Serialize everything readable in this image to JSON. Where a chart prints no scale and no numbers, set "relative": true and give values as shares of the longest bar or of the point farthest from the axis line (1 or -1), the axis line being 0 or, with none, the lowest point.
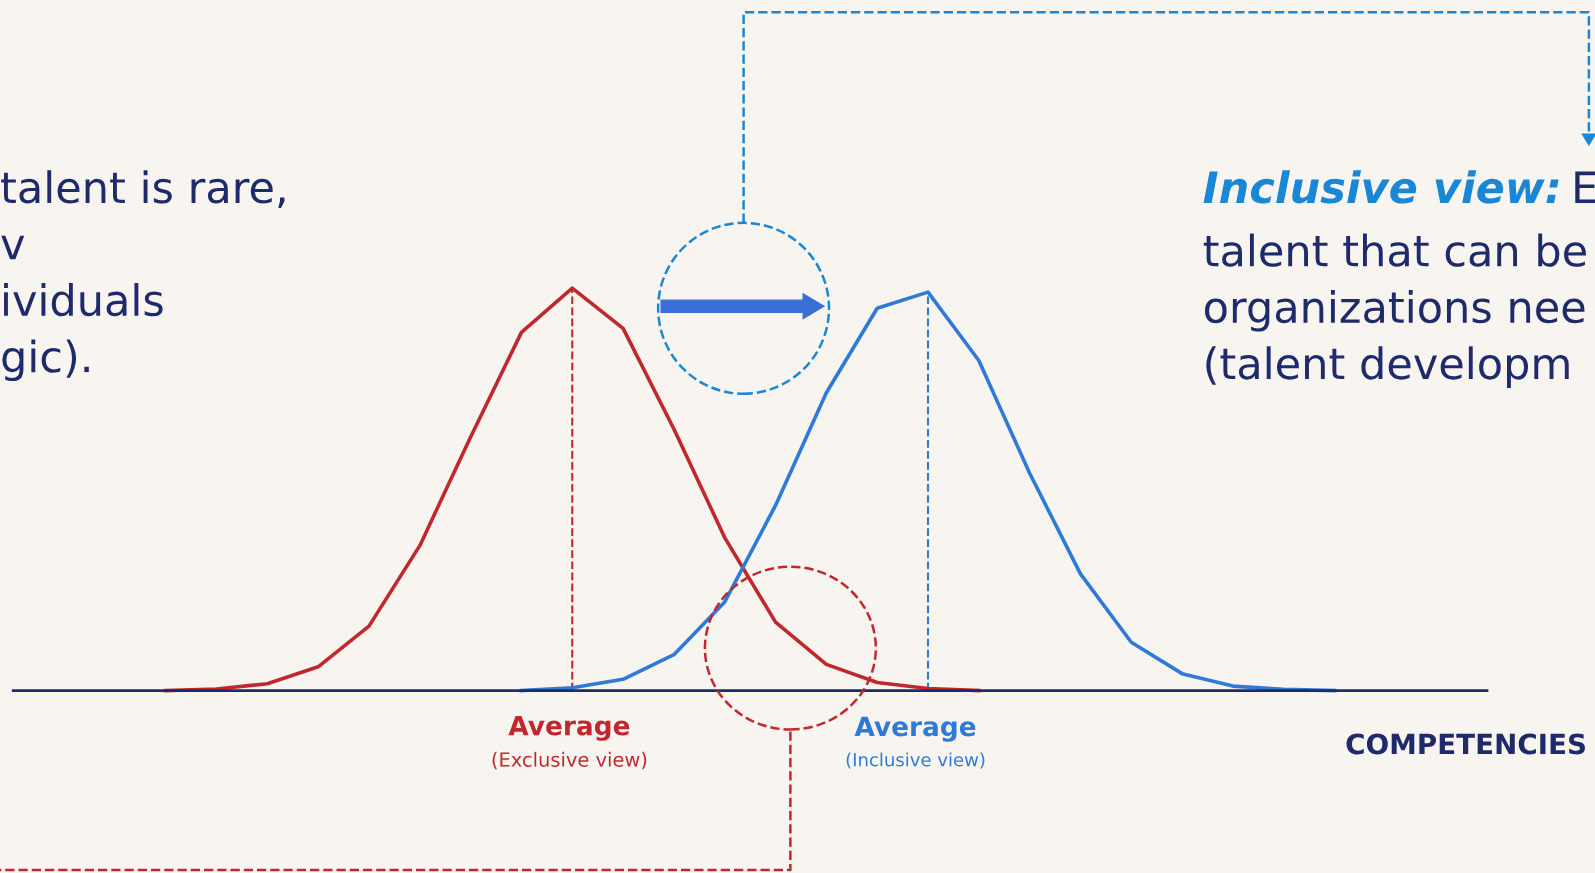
{
  "chart_data": {
    "type": "line",
    "relative": true,
    "tick_labels": false,
    "grid": false,
    "legend": false,
    "marker": "none",
    "line_style": "solid",
    "categories": [
      null,
      null,
      null,
      null,
      null,
      null,
      null,
      null,
      null,
      null,
      null,
      null,
      null,
      null,
      null,
      null,
      null,
      null,
      null,
      null,
      null,
      null,
      null,
      null,
      null,
      null,
      null,
      null,
      null,
      null
    ],
    "series": [
      {
        "color": "#c0282d",
        "values": [
          null,
          null,
          null,
          0,
          0.004,
          0.017,
          0.059,
          0.16,
          0.36,
          0.63,
          0.89,
          1.0,
          0.9,
          0.65,
          0.38,
          0.17,
          0.065,
          0.02,
          0.005,
          0,
          null,
          null,
          null,
          null,
          null,
          null,
          null,
          null,
          null,
          null
        ]
      },
      {
        "color": "#2f7ad6",
        "values": [
          null,
          null,
          null,
          null,
          null,
          null,
          null,
          null,
          null,
          null,
          0,
          0.007,
          0.028,
          0.089,
          0.22,
          0.46,
          0.74,
          0.95,
          0.99,
          0.82,
          0.54,
          0.29,
          0.12,
          0.042,
          0.011,
          0.003,
          0,
          null,
          null,
          null
        ]
      }
    ],
    "xlabel": "COMPETENCIES",
    "annotations": [
      "talent is rare,\nv\nividuals\ngic).",
      "Inclusive view:",
      "E\ntalent that can be\norganizations nee\n(talent developm",
      "Average",
      "(Exclusive view)",
      "Average",
      "(Inclusive view)"
    ]
  }
}
